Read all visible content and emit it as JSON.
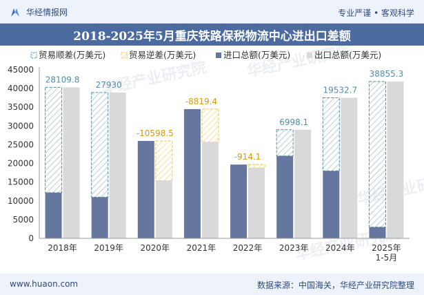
{
  "header": {
    "brand": "华经情报网",
    "slogan": "专业严谨 • 客观科学"
  },
  "title": "2018-2025年5月重庆铁路保税物流中心进出口差额",
  "footer": {
    "url": "www.huaon.com",
    "source": "数据来源：中国海关，华经产业研究院整理"
  },
  "watermark": "华经产业研究院",
  "colors": {
    "import": "#65779e",
    "export": "#d9d9d9",
    "surplus": "#4f8fa6",
    "deficit": "#f2c641",
    "header_bg": "#eef3fb",
    "title_bg": "#4a6aa0"
  },
  "chart_data": {
    "type": "bar",
    "categories": [
      "2018年",
      "2019年",
      "2020年",
      "2021年",
      "2022年",
      "2023年",
      "2024年",
      "2025年\n1-5月"
    ],
    "series": [
      {
        "name": "进口总额(万美元)",
        "key": "import",
        "values": [
          12200,
          11000,
          26000,
          34500,
          19700,
          22000,
          18000,
          3000
        ]
      },
      {
        "name": "出口总额(万美元)",
        "key": "export",
        "values": [
          40310,
          38930,
          15400,
          25680,
          18790,
          29000,
          37530,
          41860
        ]
      }
    ],
    "balance": {
      "surplus_name": "贸易顺差(万美元)",
      "deficit_name": "贸易逆差(万美元)",
      "values": [
        28109.8,
        27930,
        -10598.5,
        -8819.4,
        -914.1,
        6998.1,
        19532.7,
        38855.3
      ],
      "labels": [
        "28109.8",
        "27930",
        "-10598.5",
        "-8819.4",
        "-914.1",
        "6998.1",
        "19532.7",
        "38855.3"
      ]
    },
    "ylim": [
      0,
      45000
    ],
    "yticks": [
      0,
      5000,
      10000,
      15000,
      20000,
      25000,
      30000,
      35000,
      40000,
      45000
    ],
    "grid": false,
    "legend": "top"
  }
}
